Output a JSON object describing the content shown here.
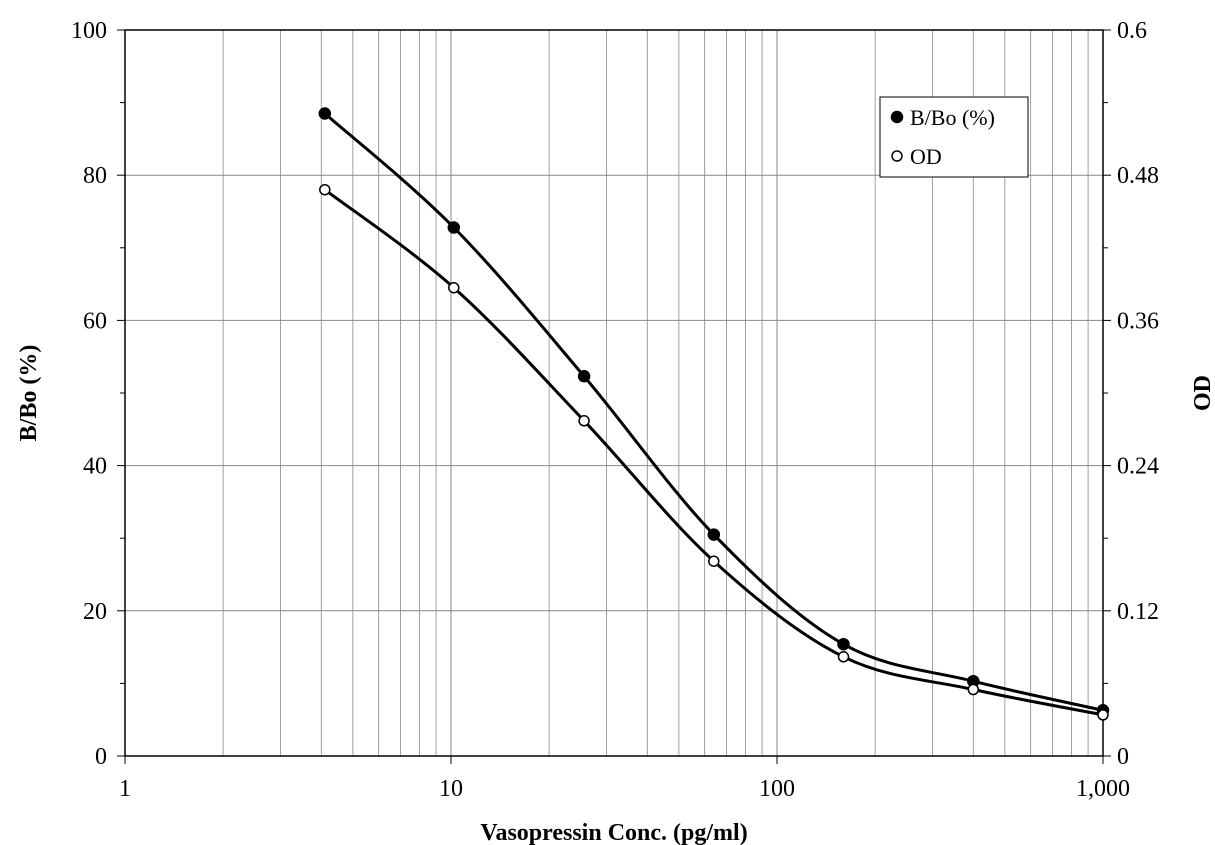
{
  "chart_data": {
    "type": "line",
    "xlabel": "Vasopressin Conc. (pg/ml)",
    "ylabel_left": "B/Bo (%)",
    "ylabel_right": "OD",
    "x_scale": "log",
    "xlim": [
      1,
      1000
    ],
    "ylim_left": [
      0,
      100
    ],
    "ylim_right": [
      0,
      0.6
    ],
    "x_ticks": [
      1,
      10,
      100,
      1000
    ],
    "x_tick_labels": [
      "1",
      "10",
      "100",
      "1,000"
    ],
    "y_left_ticks": [
      0,
      20,
      40,
      60,
      80,
      100
    ],
    "y_left_tick_labels": [
      "0",
      "20",
      "40",
      "60",
      "80",
      "100"
    ],
    "y_right_ticks": [
      0,
      0.12,
      0.24,
      0.36,
      0.48,
      0.6
    ],
    "y_right_tick_labels": [
      "0",
      "0.12",
      "0.24",
      "0.36",
      "0.48",
      "0.6"
    ],
    "grid": "major and minor vertical, major horizontal",
    "legend_position": "top-right",
    "series": [
      {
        "name": "B/Bo (%)",
        "axis": "left",
        "marker": "filled-circle",
        "x": [
          4.1,
          10.2,
          25.6,
          64,
          160,
          400,
          1000
        ],
        "y": [
          88.5,
          72.8,
          52.3,
          30.5,
          15.4,
          10.3,
          6.3
        ]
      },
      {
        "name": "OD",
        "axis": "right",
        "marker": "open-circle",
        "x": [
          4.1,
          10.2,
          25.6,
          64,
          160,
          400,
          1000
        ],
        "y": [
          0.468,
          0.387,
          0.277,
          0.161,
          0.082,
          0.055,
          0.034
        ]
      }
    ],
    "colors": {
      "line": "#000000",
      "grid": "#888888",
      "background": "#ffffff"
    }
  }
}
